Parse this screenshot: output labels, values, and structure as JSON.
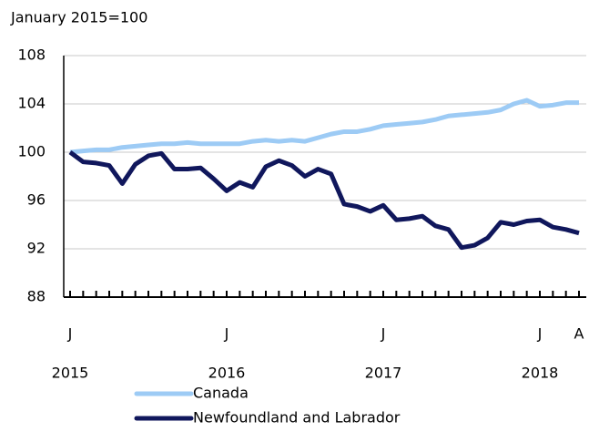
{
  "chart_data": {
    "type": "line",
    "subtitle": "January 2015=100",
    "categories": [
      "J",
      null,
      null,
      null,
      null,
      null,
      null,
      null,
      null,
      null,
      null,
      null,
      "J",
      null,
      null,
      null,
      null,
      null,
      null,
      null,
      null,
      null,
      null,
      null,
      "J",
      null,
      null,
      null,
      null,
      null,
      null,
      null,
      null,
      null,
      null,
      null,
      "J",
      null,
      null,
      "A"
    ],
    "years": [
      "2015",
      null,
      null,
      null,
      null,
      null,
      null,
      null,
      null,
      null,
      null,
      null,
      "2016",
      null,
      null,
      null,
      null,
      null,
      null,
      null,
      null,
      null,
      null,
      null,
      "2017",
      null,
      null,
      null,
      null,
      null,
      null,
      null,
      null,
      null,
      null,
      null,
      "2018",
      null,
      null,
      null
    ],
    "series": [
      {
        "name": "Canada",
        "color": "#9dcbf5",
        "values": [
          100.0,
          100.1,
          100.2,
          100.2,
          100.4,
          100.5,
          100.6,
          100.7,
          100.7,
          100.8,
          100.7,
          100.7,
          100.7,
          100.7,
          100.9,
          101.0,
          100.9,
          101.0,
          100.9,
          101.2,
          101.5,
          101.7,
          101.7,
          101.9,
          102.2,
          102.3,
          102.4,
          102.5,
          102.7,
          103.0,
          103.1,
          103.2,
          103.3,
          103.5,
          104.0,
          104.3,
          103.8,
          103.9,
          104.1,
          104.1
        ]
      },
      {
        "name": "Newfoundland and Labrador",
        "color": "#10175c",
        "values": [
          100.0,
          99.2,
          99.1,
          98.9,
          97.4,
          99.0,
          99.7,
          99.9,
          98.6,
          98.6,
          98.7,
          97.8,
          96.8,
          97.5,
          97.1,
          98.8,
          99.3,
          98.9,
          98.0,
          98.6,
          98.2,
          95.7,
          95.5,
          95.1,
          95.6,
          94.4,
          94.5,
          94.7,
          93.9,
          93.6,
          92.1,
          92.3,
          92.9,
          94.2,
          94.0,
          94.3,
          94.4,
          93.8,
          93.6,
          93.3
        ]
      }
    ],
    "ylim": [
      88,
      108
    ],
    "yticks": [
      88,
      92,
      96,
      100,
      104,
      108
    ],
    "grid": true
  }
}
